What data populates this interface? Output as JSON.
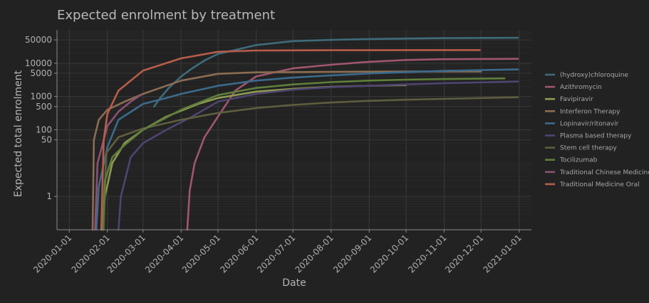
{
  "chart_data": {
    "type": "line",
    "title": "Expected enrolment by treatment",
    "xlabel": "Date",
    "ylabel": "Expected total enrolment",
    "yscale": "log",
    "ylim": [
      0.1,
      100000
    ],
    "xlim": [
      "2019-12-22",
      "2021-01-11"
    ],
    "grid": true,
    "legend_position": "right",
    "x_ticks": [
      "2020-01-01",
      "2020-02-01",
      "2020-03-01",
      "2020-04-01",
      "2020-05-01",
      "2020-06-01",
      "2020-07-01",
      "2020-08-01",
      "2020-09-01",
      "2020-10-01",
      "2020-11-01",
      "2020-12-01",
      "2021-01-01"
    ],
    "y_ticks": [
      {
        "value": 1,
        "label": "1"
      },
      {
        "value": 50,
        "label": "50"
      },
      {
        "value": 100,
        "label": "100"
      },
      {
        "value": 500,
        "label": "500"
      },
      {
        "value": 1000,
        "label": "1000"
      },
      {
        "value": 5000,
        "label": "5000"
      },
      {
        "value": 10000,
        "label": "10000"
      },
      {
        "value": 50000,
        "label": "50000"
      }
    ],
    "series": [
      {
        "name": "(hydroxy)chloroquine",
        "color": "#3e6b7a",
        "points": [
          [
            "2020-03-10",
            500
          ],
          [
            "2020-03-15",
            900
          ],
          [
            "2020-03-22",
            1800
          ],
          [
            "2020-04-01",
            4000
          ],
          [
            "2020-04-10",
            7000
          ],
          [
            "2020-04-20",
            12000
          ],
          [
            "2020-05-01",
            19000
          ],
          [
            "2020-06-01",
            35000
          ],
          [
            "2020-07-01",
            46000
          ],
          [
            "2020-08-01",
            50000
          ],
          [
            "2020-09-01",
            53000
          ],
          [
            "2020-10-01",
            55000
          ],
          [
            "2020-11-01",
            56500
          ],
          [
            "2020-12-31",
            58000
          ]
        ]
      },
      {
        "name": "Azithromycin",
        "color": "#a0566c",
        "points": [
          [
            "2020-04-06",
            0.1
          ],
          [
            "2020-04-08",
            1.5
          ],
          [
            "2020-04-12",
            10
          ],
          [
            "2020-04-20",
            60
          ],
          [
            "2020-05-01",
            250
          ],
          [
            "2020-05-15",
            1500
          ],
          [
            "2020-06-01",
            4000
          ],
          [
            "2020-07-01",
            7000
          ],
          [
            "2020-08-01",
            9000
          ],
          [
            "2020-09-01",
            11000
          ],
          [
            "2020-10-01",
            12500
          ],
          [
            "2020-11-01",
            13200
          ],
          [
            "2020-12-31",
            13500
          ]
        ]
      },
      {
        "name": "Favipiravir",
        "color": "#8e9a52",
        "points": [
          [
            "2020-01-28",
            0.1
          ],
          [
            "2020-01-30",
            1.0
          ],
          [
            "2020-02-05",
            10
          ],
          [
            "2020-02-15",
            40
          ],
          [
            "2020-03-01",
            100
          ],
          [
            "2020-03-20",
            250
          ],
          [
            "2020-04-15",
            600
          ],
          [
            "2020-05-01",
            900
          ],
          [
            "2020-06-01",
            1400
          ],
          [
            "2020-07-01",
            1700
          ],
          [
            "2020-08-01",
            1950
          ],
          [
            "2020-09-01",
            2100
          ],
          [
            "2020-10-01",
            2200
          ]
        ]
      },
      {
        "name": "Interferon Therapy",
        "color": "#8b6d52",
        "points": [
          [
            "2020-01-20",
            0.1
          ],
          [
            "2020-01-21",
            50
          ],
          [
            "2020-01-25",
            200
          ],
          [
            "2020-02-01",
            400
          ],
          [
            "2020-02-15",
            700
          ],
          [
            "2020-03-01",
            1200
          ],
          [
            "2020-04-01",
            3000
          ],
          [
            "2020-05-01",
            4800
          ],
          [
            "2020-06-01",
            5300
          ],
          [
            "2020-08-01",
            5500
          ],
          [
            "2020-10-01",
            5600
          ],
          [
            "2020-12-01",
            5650
          ]
        ]
      },
      {
        "name": "Lopinavir/ritonavir",
        "color": "#3b6a8c",
        "points": [
          [
            "2020-01-23",
            0.1
          ],
          [
            "2020-01-25",
            2
          ],
          [
            "2020-02-01",
            30
          ],
          [
            "2020-02-10",
            200
          ],
          [
            "2020-03-01",
            600
          ],
          [
            "2020-03-20",
            900
          ],
          [
            "2020-04-01",
            1200
          ],
          [
            "2020-05-01",
            2100
          ],
          [
            "2020-06-01",
            3000
          ],
          [
            "2020-07-01",
            3700
          ],
          [
            "2020-08-01",
            4300
          ],
          [
            "2020-09-01",
            4900
          ],
          [
            "2020-10-01",
            5400
          ],
          [
            "2020-11-01",
            5900
          ],
          [
            "2020-12-31",
            6500
          ]
        ]
      },
      {
        "name": "Plasma based therapy",
        "color": "#4f4470",
        "points": [
          [
            "2020-02-10",
            0.1
          ],
          [
            "2020-02-12",
            1
          ],
          [
            "2020-02-20",
            15
          ],
          [
            "2020-03-01",
            40
          ],
          [
            "2020-03-20",
            100
          ],
          [
            "2020-04-10",
            250
          ],
          [
            "2020-05-01",
            700
          ],
          [
            "2020-06-01",
            1200
          ],
          [
            "2020-07-01",
            1600
          ],
          [
            "2020-08-01",
            1900
          ],
          [
            "2020-09-01",
            2100
          ],
          [
            "2020-10-01",
            2300
          ],
          [
            "2020-11-01",
            2500
          ],
          [
            "2020-12-31",
            2800
          ]
        ]
      },
      {
        "name": "Stem cell therapy",
        "color": "#5e5e3e",
        "points": [
          [
            "2020-01-29",
            0.1
          ],
          [
            "2020-01-31",
            20
          ],
          [
            "2020-02-10",
            60
          ],
          [
            "2020-03-01",
            110
          ],
          [
            "2020-04-01",
            200
          ],
          [
            "2020-05-01",
            320
          ],
          [
            "2020-06-01",
            450
          ],
          [
            "2020-07-01",
            560
          ],
          [
            "2020-08-01",
            660
          ],
          [
            "2020-09-01",
            740
          ],
          [
            "2020-10-01",
            800
          ],
          [
            "2020-11-01",
            850
          ],
          [
            "2020-12-31",
            950
          ]
        ]
      },
      {
        "name": "Tocilizumab",
        "color": "#5f7f3b",
        "points": [
          [
            "2020-01-28",
            0.1
          ],
          [
            "2020-01-30",
            3
          ],
          [
            "2020-02-05",
            15
          ],
          [
            "2020-02-15",
            35
          ],
          [
            "2020-03-01",
            100
          ],
          [
            "2020-04-01",
            400
          ],
          [
            "2020-05-01",
            1100
          ],
          [
            "2020-06-01",
            1800
          ],
          [
            "2020-07-01",
            2300
          ],
          [
            "2020-08-01",
            2700
          ],
          [
            "2020-09-01",
            3000
          ],
          [
            "2020-10-01",
            3200
          ],
          [
            "2020-11-01",
            3350
          ],
          [
            "2020-12-20",
            3500
          ]
        ]
      },
      {
        "name": "Traditional Chinese Medicine",
        "color": "#8a5275",
        "points": [
          [
            "2020-01-22",
            0.1
          ],
          [
            "2020-01-24",
            10
          ],
          [
            "2020-01-29",
            50
          ],
          [
            "2020-02-01",
            130
          ],
          [
            "2020-02-10",
            350
          ],
          [
            "2020-02-20",
            700
          ],
          [
            "2020-02-28",
            1100
          ]
        ]
      },
      {
        "name": "Traditional Medicine Oral",
        "color": "#b85c4a",
        "points": [
          [
            "2020-01-27",
            0.1
          ],
          [
            "2020-01-29",
            50
          ],
          [
            "2020-02-01",
            300
          ],
          [
            "2020-02-10",
            1500
          ],
          [
            "2020-03-01",
            6000
          ],
          [
            "2020-04-01",
            14000
          ],
          [
            "2020-05-01",
            22000
          ],
          [
            "2020-06-01",
            24000
          ],
          [
            "2020-08-01",
            24500
          ],
          [
            "2020-11-30",
            24800
          ]
        ]
      }
    ]
  }
}
